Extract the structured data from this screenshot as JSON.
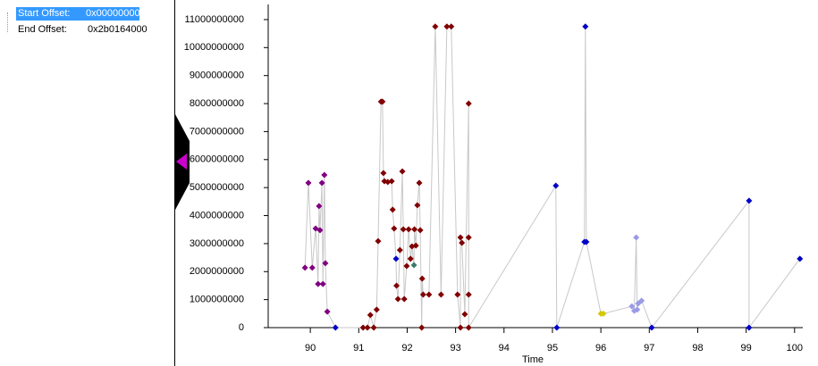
{
  "panel": {
    "items": [
      {
        "label": "Start Offset:",
        "value": "0x00000000"
      },
      {
        "label": "End Offset:",
        "value": "0x2b0164000"
      }
    ]
  },
  "chart_data": {
    "type": "scatter",
    "x_label": "Time",
    "line_color": "#c8c8c8",
    "xlim": [
      89.13,
      100.17
    ],
    "ylim": [
      0,
      11540000000
    ],
    "xticks": [
      90,
      91,
      92,
      93,
      94,
      95,
      96,
      97,
      98,
      99,
      100
    ],
    "yticks": [
      0,
      1000000000,
      2000000000,
      3000000000,
      4000000000,
      5000000000,
      6000000000,
      7000000000,
      8000000000,
      9000000000,
      10000000000,
      11000000000
    ],
    "x": [
      89.89,
      89.96,
      90.04,
      90.11,
      90.16,
      90.18,
      90.2,
      90.24,
      90.26,
      90.29,
      90.31,
      90.35,
      90.52,
      91.09,
      91.18,
      91.24,
      91.31,
      91.37,
      91.4,
      91.46,
      91.49,
      91.51,
      91.53,
      91.6,
      91.68,
      91.7,
      91.73,
      91.77,
      91.78,
      91.81,
      91.85,
      91.9,
      91.92,
      91.94,
      91.99,
      92.03,
      92.07,
      92.1,
      92.14,
      92.15,
      92.18,
      92.21,
      92.25,
      92.27,
      92.3,
      92.31,
      92.33,
      92.45,
      92.58,
      92.7,
      92.82,
      92.91,
      93.04,
      93.1,
      93.1,
      93.13,
      93.19,
      93.27,
      93.27,
      93.27,
      93.27,
      95.07,
      95.09,
      95.66,
      95.68,
      95.7,
      96.0,
      96.05,
      96.64,
      96.69,
      96.73,
      96.75,
      96.77,
      96.84,
      97.05,
      99.06,
      99.06,
      100.11
    ],
    "values": [
      2140000000,
      5170000000,
      2140000000,
      3540000000,
      1560000000,
      4340000000,
      3480000000,
      5170000000,
      1560000000,
      5450000000,
      2300000000,
      570000000,
      0,
      0,
      0,
      450000000,
      0,
      640000000,
      3090000000,
      8070000000,
      8070000000,
      5520000000,
      5230000000,
      5200000000,
      5230000000,
      4210000000,
      3540000000,
      2460000000,
      1500000000,
      1020000000,
      2770000000,
      5580000000,
      3510000000,
      1020000000,
      2200000000,
      3510000000,
      2460000000,
      2900000000,
      2230000000,
      3510000000,
      2930000000,
      4370000000,
      5170000000,
      3480000000,
      0,
      1750000000,
      1180000000,
      1180000000,
      10750000000,
      1180000000,
      10750000000,
      10750000000,
      1180000000,
      0,
      3220000000,
      3030000000,
      480000000,
      8000000000,
      1180000000,
      3220000000,
      0,
      5070000000,
      0,
      3060000000,
      10750000000,
      3060000000,
      500000000,
      500000000,
      760000000,
      600000000,
      3220000000,
      640000000,
      860000000,
      960000000,
      0,
      4530000000,
      0,
      2460000000
    ],
    "colors": [
      "#800080",
      "#800080",
      "#800080",
      "#800080",
      "#800080",
      "#800080",
      "#800080",
      "#800080",
      "#800080",
      "#800080",
      "#800080",
      "#800080",
      "#0000c8",
      "#800000",
      "#800000",
      "#800000",
      "#800000",
      "#800000",
      "#800000",
      "#800000",
      "#800000",
      "#800000",
      "#800000",
      "#800000",
      "#800000",
      "#800000",
      "#800000",
      "#0000c8",
      "#800000",
      "#800000",
      "#800000",
      "#800000",
      "#800000",
      "#800000",
      "#800000",
      "#800000",
      "#800000",
      "#800000",
      "#3c7a6e",
      "#800000",
      "#800000",
      "#800000",
      "#800000",
      "#800000",
      "#800000",
      "#800000",
      "#800000",
      "#800000",
      "#800000",
      "#800000",
      "#800000",
      "#800000",
      "#800000",
      "#800000",
      "#800000",
      "#800000",
      "#800000",
      "#800000",
      "#800000",
      "#800000",
      "#800000",
      "#0000c8",
      "#0000c8",
      "#0000c8",
      "#0000c8",
      "#0000c8",
      "#d4c800",
      "#d4c800",
      "#9a9ae6",
      "#9a9ae6",
      "#9a9ae6",
      "#9a9ae6",
      "#9a9ae6",
      "#9a9ae6",
      "#0000c8",
      "#0000c8",
      "#0000c8",
      "#0000c8"
    ]
  }
}
